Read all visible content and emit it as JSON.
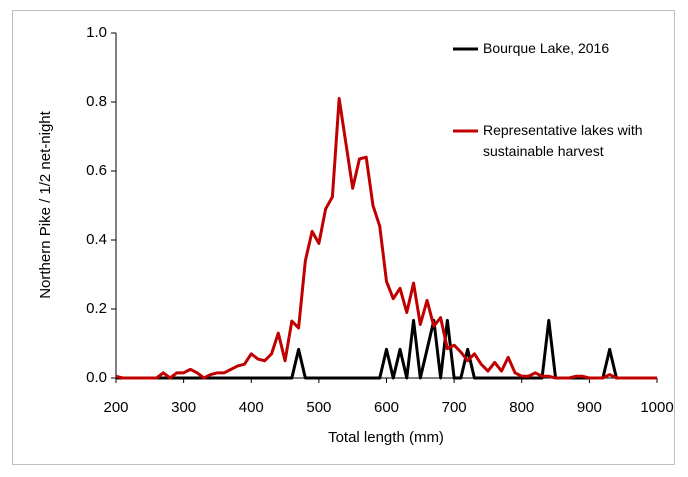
{
  "chart_data": {
    "type": "line",
    "x_label": "Total length (mm)",
    "y_label": "Northern Pike / 1/2 net-night",
    "x": [
      200,
      210,
      220,
      230,
      240,
      250,
      260,
      270,
      280,
      290,
      300,
      310,
      320,
      330,
      340,
      350,
      360,
      370,
      380,
      390,
      400,
      410,
      420,
      430,
      440,
      450,
      460,
      470,
      480,
      490,
      500,
      510,
      520,
      530,
      540,
      550,
      560,
      570,
      580,
      590,
      600,
      610,
      620,
      630,
      640,
      650,
      660,
      670,
      680,
      690,
      700,
      710,
      720,
      730,
      740,
      750,
      760,
      770,
      780,
      790,
      800,
      810,
      820,
      830,
      840,
      850,
      860,
      870,
      880,
      890,
      900,
      910,
      920,
      930,
      940,
      950,
      960,
      970,
      980,
      990,
      1000
    ],
    "series": [
      {
        "name": "Bourque Lake, 2016",
        "color": "#000000",
        "values": [
          0,
          0,
          0,
          0,
          0,
          0,
          0,
          0,
          0,
          0,
          0,
          0,
          0,
          0,
          0,
          0,
          0,
          0,
          0,
          0,
          0,
          0,
          0,
          0,
          0,
          0,
          0,
          0.083,
          0,
          0,
          0,
          0,
          0,
          0,
          0,
          0,
          0,
          0,
          0,
          0,
          0.083,
          0,
          0.083,
          0,
          0.167,
          0,
          0.083,
          0.167,
          0,
          0.167,
          0,
          0,
          0.083,
          0,
          0,
          0,
          0,
          0,
          0,
          0,
          0,
          0,
          0,
          0,
          0.167,
          0,
          0,
          0,
          0,
          0,
          0,
          0,
          0,
          0.083,
          0,
          null,
          null,
          null,
          null,
          null,
          null
        ]
      },
      {
        "name": "Representative lakes with sustainable harvest",
        "color": "#c00000",
        "values": [
          0.005,
          0,
          0,
          0,
          0,
          0,
          0,
          0.015,
          0,
          0.015,
          0.015,
          0.025,
          0.015,
          0,
          0.01,
          0.015,
          0.015,
          0.025,
          0.035,
          0.04,
          0.07,
          0.055,
          0.05,
          0.07,
          0.13,
          0.05,
          0.165,
          0.145,
          0.34,
          0.425,
          0.39,
          0.49,
          0.525,
          0.81,
          0.68,
          0.55,
          0.635,
          0.64,
          0.5,
          0.44,
          0.28,
          0.23,
          0.26,
          0.19,
          0.275,
          0.155,
          0.225,
          0.15,
          0.175,
          0.085,
          0.095,
          0.075,
          0.05,
          0.07,
          0.04,
          0.02,
          0.045,
          0.02,
          0.06,
          0.015,
          0.005,
          0.005,
          0.015,
          0.005,
          0.005,
          0,
          0,
          0,
          0.005,
          0.005,
          0,
          0,
          0,
          0.01,
          0,
          0,
          0,
          0,
          0,
          0,
          0
        ]
      }
    ],
    "xlim": [
      200,
      1000
    ],
    "xticks": [
      200,
      300,
      400,
      500,
      600,
      700,
      800,
      900,
      1000
    ],
    "ylim": [
      0,
      1
    ],
    "yticks": [
      {
        "value": 0,
        "label": "0.0"
      },
      0.2,
      0.4,
      0.6,
      0.8,
      {
        "value": 1,
        "label": "1.0"
      }
    ],
    "grid": false
  }
}
